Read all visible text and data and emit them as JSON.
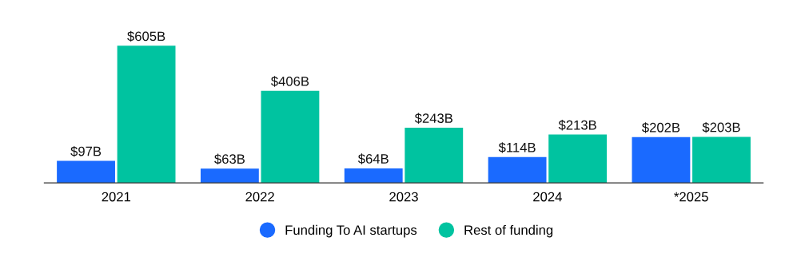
{
  "chart_data": {
    "type": "bar",
    "categories": [
      "2021",
      "2022",
      "2023",
      "2024",
      "*2025"
    ],
    "series": [
      {
        "name": "Funding To AI startups",
        "color": "#1a6aff",
        "values": [
          97,
          63,
          64,
          114,
          202
        ],
        "value_labels": [
          "$97B",
          "$63B",
          "$64B",
          "$114B",
          "$202B"
        ]
      },
      {
        "name": "Rest of funding",
        "color": "#00c3a0",
        "values": [
          605,
          406,
          243,
          213,
          203
        ],
        "value_labels": [
          "$605B",
          "$406B",
          "$243B",
          "$213B",
          "$203B"
        ]
      }
    ],
    "legend": "bottom",
    "grid": false
  }
}
